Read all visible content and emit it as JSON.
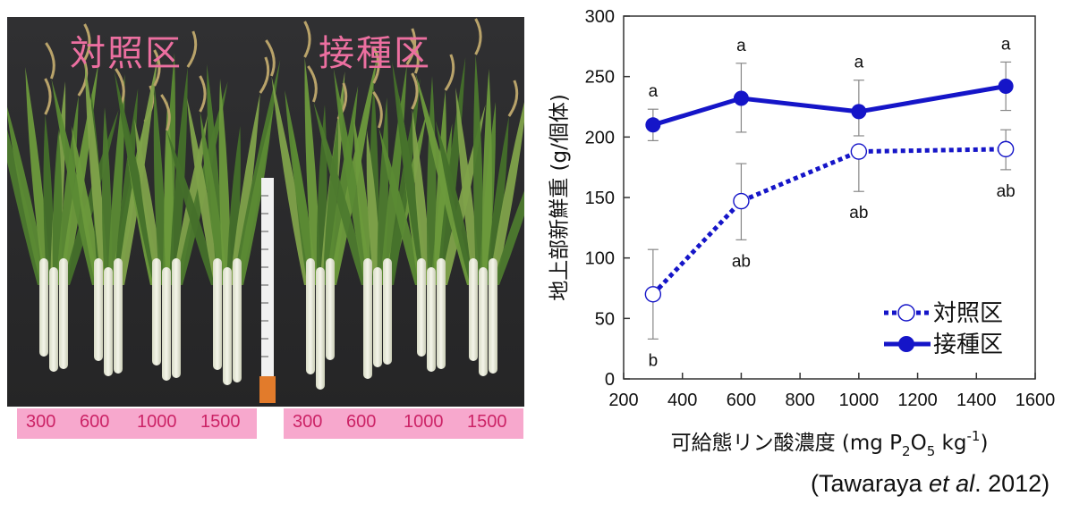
{
  "photo": {
    "label_control": "対照区",
    "label_inoculated": "接種区",
    "doses_left": [
      "300",
      "600",
      "1000",
      "1500"
    ],
    "doses_right": [
      "300",
      "600",
      "1000",
      "1500"
    ]
  },
  "chart_data": {
    "type": "line",
    "ylabel": "地上部新鮮重 (g/個体)",
    "xlabel_parts": [
      "可給態リン酸濃度 (mg P",
      "2",
      "O",
      "5",
      " kg",
      "-1",
      ")"
    ],
    "xlim": [
      200,
      1600
    ],
    "ylim": [
      0,
      300
    ],
    "xticks": [
      200,
      400,
      600,
      800,
      1000,
      1200,
      1400,
      1600
    ],
    "yticks": [
      0,
      50,
      100,
      150,
      200,
      250,
      300
    ],
    "x": [
      300,
      600,
      1000,
      1500
    ],
    "series": [
      {
        "name": "対照区",
        "style": "dotted-open",
        "color": "#1515c8",
        "values": [
          70,
          147,
          188,
          190
        ],
        "err_low": [
          33,
          115,
          155,
          173
        ],
        "err_high": [
          107,
          178,
          188,
          206
        ],
        "labels": [
          "b",
          "ab",
          "ab",
          "ab"
        ]
      },
      {
        "name": "接種区",
        "style": "solid-filled",
        "color": "#1515c8",
        "values": [
          210,
          232,
          221,
          242
        ],
        "err_low": [
          197,
          204,
          201,
          222
        ],
        "err_high": [
          223,
          261,
          247,
          262
        ],
        "labels": [
          "a",
          "a",
          "a",
          "a"
        ]
      }
    ],
    "legend_position": "bottom-right",
    "grid": false
  },
  "citation": {
    "open": "(Tawaraya ",
    "italic": "et al",
    "close": ". 2012)"
  }
}
